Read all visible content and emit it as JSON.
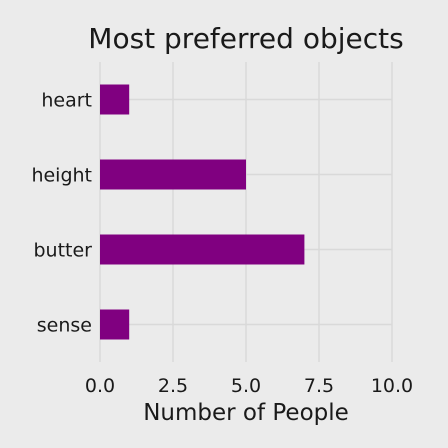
{
  "chart_data": {
    "type": "bar",
    "orientation": "horizontal",
    "title": "Most preferred objects",
    "xlabel": "Number of People",
    "ylabel": "",
    "categories": [
      "heart",
      "height",
      "butter",
      "sense"
    ],
    "values": [
      1,
      5,
      7,
      1
    ],
    "xlim": [
      0,
      10
    ],
    "xticks": [
      "0.0",
      "2.5",
      "5.0",
      "7.5",
      "10.0"
    ],
    "grid": true,
    "legend": "none",
    "colors": {
      "bar": "#800080",
      "background": "#ebebeb",
      "grid": "#d9d9d9",
      "text": "#1a1a1a"
    }
  }
}
